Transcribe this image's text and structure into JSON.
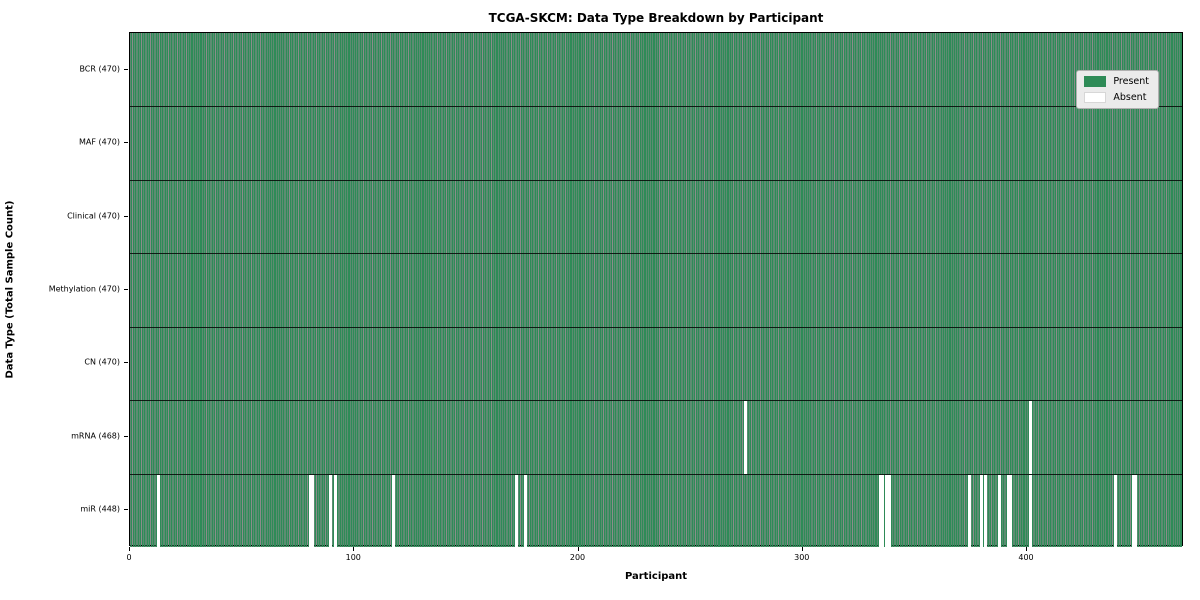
{
  "chart_data": {
    "type": "heatmap",
    "title": "TCGA-SKCM: Data Type Breakdown by Participant",
    "xlabel": "Participant",
    "ylabel": "Data Type (Total Sample Count)",
    "n_participants": 470,
    "x_range": [
      0,
      470
    ],
    "x_ticks": [
      0,
      100,
      200,
      300,
      400
    ],
    "grid": "row dividers only",
    "legend_position": "upper right",
    "legend": {
      "entries": [
        {
          "label": "Present",
          "color": "#2e8b57"
        },
        {
          "label": "Absent",
          "color": "#ffffff"
        }
      ]
    },
    "rows": [
      {
        "label": "BCR (470)",
        "data_type": "BCR",
        "total_samples": 470,
        "absent_participants": []
      },
      {
        "label": "MAF (470)",
        "data_type": "MAF",
        "total_samples": 470,
        "absent_participants": []
      },
      {
        "label": "Clinical (470)",
        "data_type": "Clinical",
        "total_samples": 470,
        "absent_participants": []
      },
      {
        "label": "Methylation (470)",
        "data_type": "Methylation",
        "total_samples": 470,
        "absent_participants": []
      },
      {
        "label": "CN (470)",
        "data_type": "CN",
        "total_samples": 470,
        "absent_participants": []
      },
      {
        "label": "mRNA (468)",
        "data_type": "mRNA",
        "total_samples": 468,
        "absent_participants": [
          274,
          401
        ]
      },
      {
        "label": "miR (448)",
        "data_type": "miR",
        "total_samples": 448,
        "absent_participants": [
          12,
          80,
          81,
          89,
          91,
          117,
          172,
          176,
          334,
          335,
          337,
          338,
          374,
          379,
          381,
          387,
          391,
          392,
          401,
          439,
          447,
          448
        ]
      }
    ],
    "colors": {
      "present": "#2e8b57",
      "absent": "#ffffff",
      "cell_edge": "rgba(0,0,0,0.45)",
      "row_divider": "rgba(0,0,0,0.8)",
      "plot_border": "#000000",
      "legend_bg": "#ebebeb",
      "legend_border": "#b0b0b0"
    }
  }
}
